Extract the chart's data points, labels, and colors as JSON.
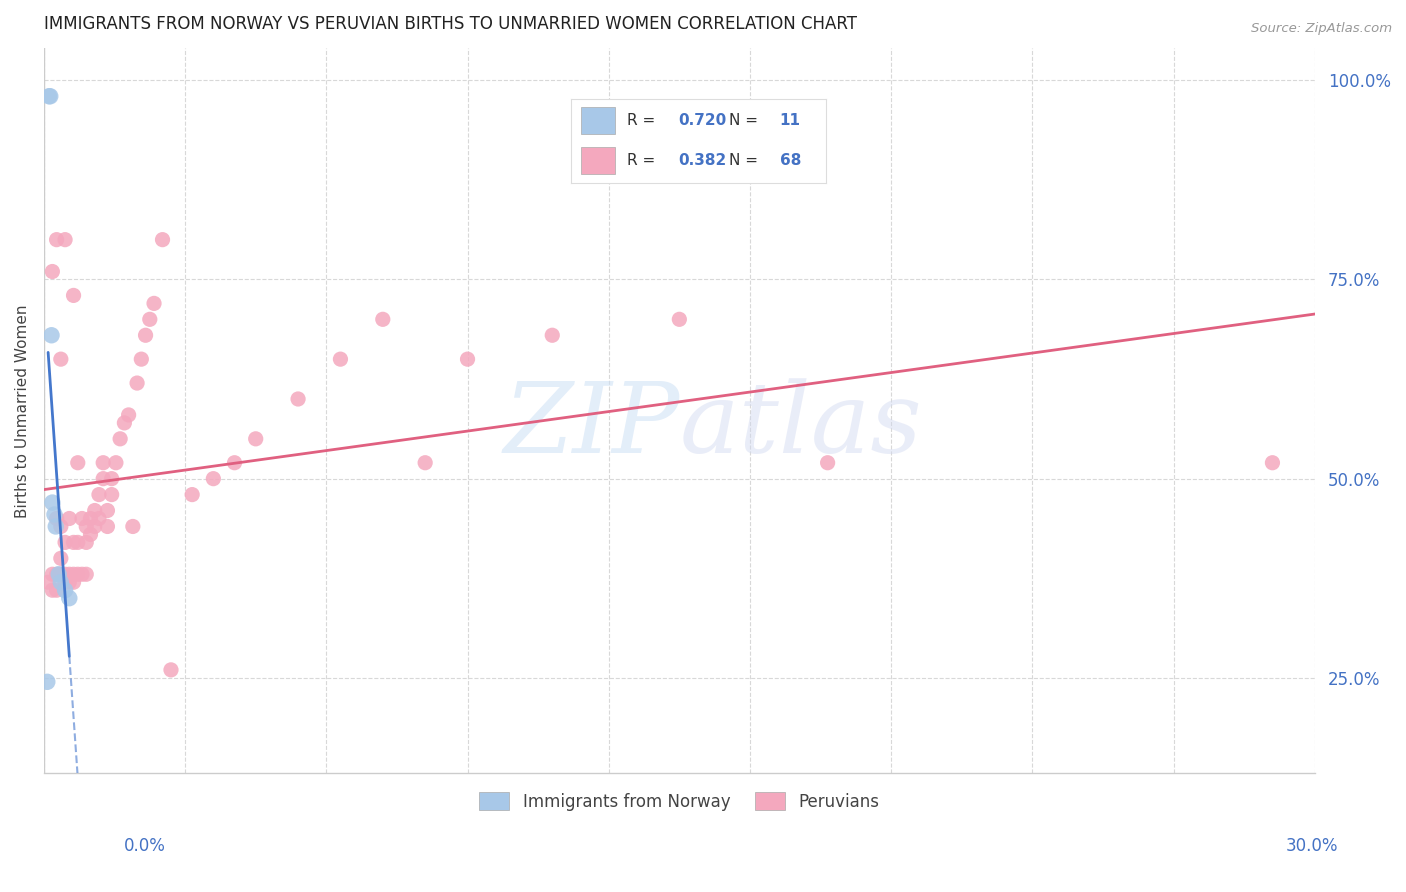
{
  "title": "IMMIGRANTS FROM NORWAY VS PERUVIAN BIRTHS TO UNMARRIED WOMEN CORRELATION CHART",
  "source": "Source: ZipAtlas.com",
  "ylabel": "Births to Unmarried Women",
  "norway_R": "0.720",
  "norway_N": "11",
  "peru_R": "0.382",
  "peru_N": "68",
  "norway_color": "#a8c8e8",
  "peru_color": "#f4a8be",
  "norway_line_color": "#4477cc",
  "peru_line_color": "#e06080",
  "background_color": "#ffffff",
  "grid_color": "#d8d8d8",
  "xlim": [
    0.0,
    0.3
  ],
  "ylim": [
    0.13,
    1.04
  ],
  "yticks": [
    0.25,
    0.5,
    0.75,
    1.0
  ],
  "ytick_labels": [
    "25.0%",
    "50.0%",
    "75.0%",
    "100.0%"
  ],
  "norway_x": [
    0.0008,
    0.0012,
    0.0015,
    0.0018,
    0.002,
    0.0025,
    0.0028,
    0.0035,
    0.004,
    0.005,
    0.006
  ],
  "norway_y": [
    0.245,
    0.98,
    0.98,
    0.68,
    0.47,
    0.455,
    0.44,
    0.38,
    0.37,
    0.36,
    0.35
  ],
  "peru_x": [
    0.001,
    0.002,
    0.002,
    0.003,
    0.003,
    0.004,
    0.004,
    0.005,
    0.005,
    0.005,
    0.006,
    0.006,
    0.006,
    0.007,
    0.007,
    0.007,
    0.008,
    0.008,
    0.009,
    0.009,
    0.01,
    0.01,
    0.01,
    0.011,
    0.011,
    0.012,
    0.012,
    0.013,
    0.013,
    0.014,
    0.014,
    0.015,
    0.015,
    0.016,
    0.016,
    0.017,
    0.018,
    0.019,
    0.02,
    0.021,
    0.022,
    0.023,
    0.024,
    0.025,
    0.026,
    0.028,
    0.03,
    0.035,
    0.04,
    0.045,
    0.05,
    0.06,
    0.07,
    0.08,
    0.09,
    0.1,
    0.12,
    0.15,
    0.002,
    0.003,
    0.004,
    0.005,
    0.007,
    0.008,
    0.29,
    0.185,
    0.003,
    0.004
  ],
  "peru_y": [
    0.37,
    0.36,
    0.38,
    0.36,
    0.38,
    0.38,
    0.44,
    0.38,
    0.42,
    0.37,
    0.37,
    0.38,
    0.45,
    0.37,
    0.38,
    0.42,
    0.38,
    0.42,
    0.38,
    0.45,
    0.38,
    0.42,
    0.44,
    0.43,
    0.45,
    0.44,
    0.46,
    0.45,
    0.48,
    0.5,
    0.52,
    0.44,
    0.46,
    0.48,
    0.5,
    0.52,
    0.55,
    0.57,
    0.58,
    0.44,
    0.62,
    0.65,
    0.68,
    0.7,
    0.72,
    0.8,
    0.26,
    0.48,
    0.5,
    0.52,
    0.55,
    0.6,
    0.65,
    0.7,
    0.52,
    0.65,
    0.68,
    0.7,
    0.76,
    0.8,
    0.65,
    0.8,
    0.73,
    0.52,
    0.52,
    0.52,
    0.45,
    0.4
  ],
  "watermark_text": "ZIPatlas",
  "legend_bottom_labels": [
    "Immigrants from Norway",
    "Peruvians"
  ]
}
